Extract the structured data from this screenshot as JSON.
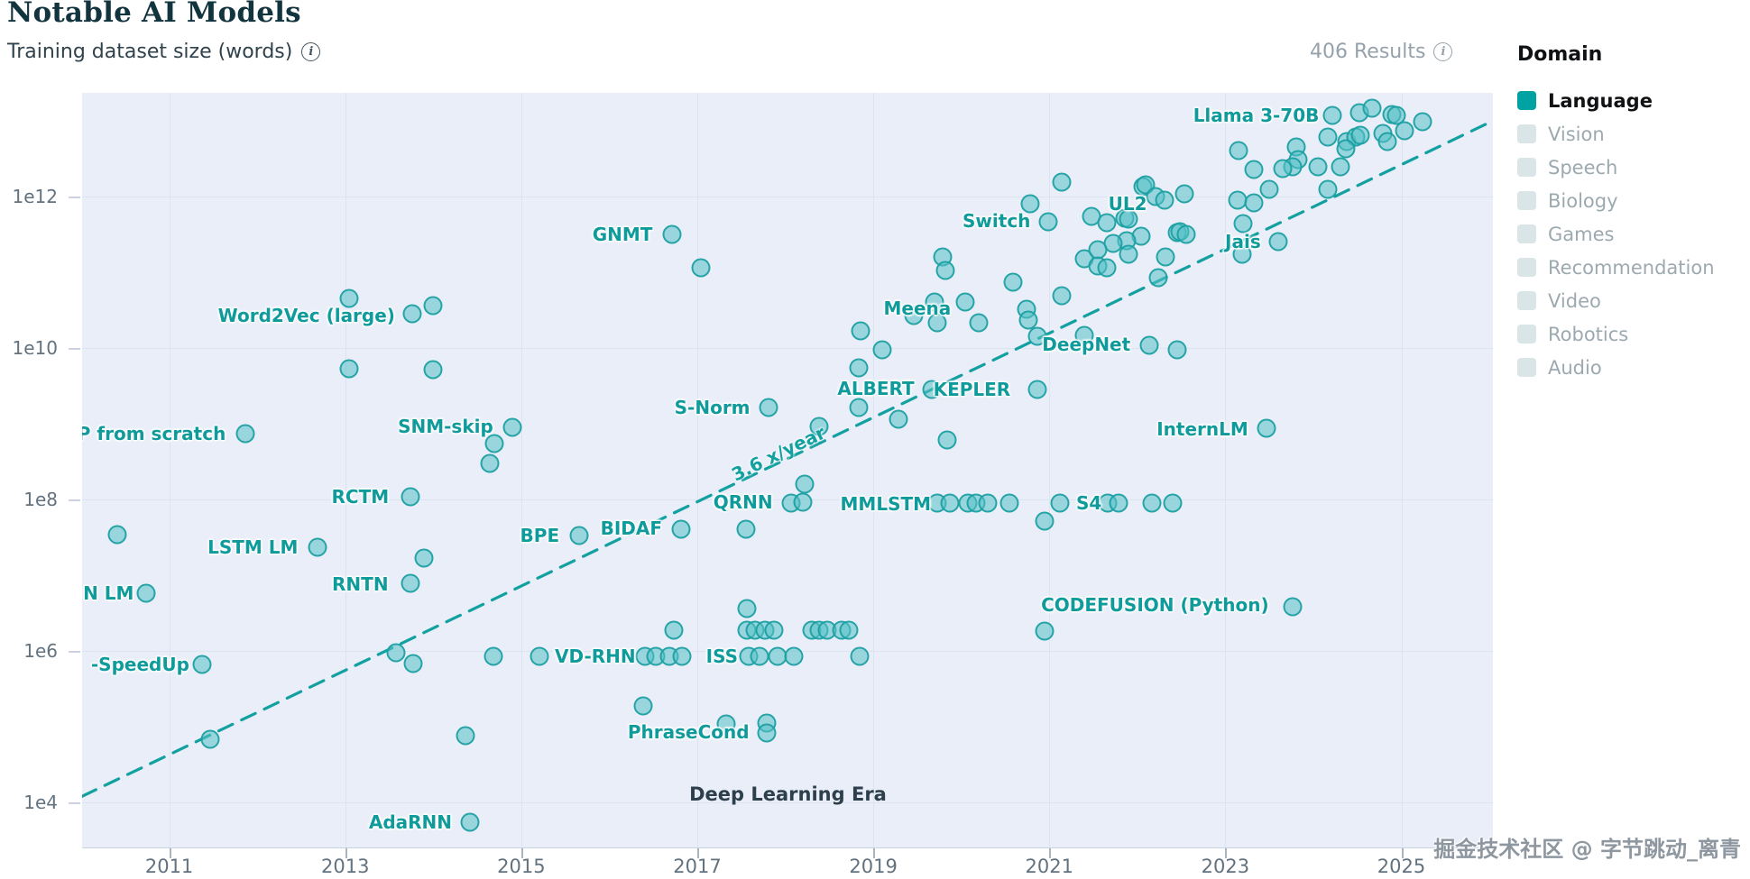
{
  "header": {
    "title": "Notable AI Models",
    "subtitle": "Training dataset size (words)",
    "results": "406 Results"
  },
  "legend": {
    "title": "Domain",
    "items": [
      {
        "label": "Language",
        "active": true
      },
      {
        "label": "Vision",
        "active": false
      },
      {
        "label": "Speech",
        "active": false
      },
      {
        "label": "Biology",
        "active": false
      },
      {
        "label": "Games",
        "active": false
      },
      {
        "label": "Recommendation",
        "active": false
      },
      {
        "label": "Video",
        "active": false
      },
      {
        "label": "Robotics",
        "active": false
      },
      {
        "label": "Audio",
        "active": false
      }
    ]
  },
  "watermark": "掘金技术社区 @ 字节跳动_离青",
  "colors": {
    "title": "#12343f",
    "subtitle": "#30424c",
    "muted": "#95a2ac",
    "accent": "#0f9b9b",
    "trend": "#12a0a0",
    "plot_bg": "#e9eef9",
    "grid": "#dde4f1",
    "axis_text": "#63727f",
    "axis_line": "#c9d2de",
    "tick": "#aab5c2",
    "point_fill": "rgba(85,193,198,0.55)",
    "point_stroke": "rgba(26,158,161,0.9)",
    "legend_active_box": "#00a2a2",
    "legend_active_text": "#101214",
    "legend_inactive_box": "#d9e5e7",
    "legend_inactive_text": "#9caab0",
    "era": "#2e3f4c",
    "watermark": "#8e979f"
  },
  "chart_data": {
    "type": "scatter",
    "title": "Notable AI Models",
    "ylabel": "Training dataset size (words)",
    "x_axis": {
      "domain": [
        2010.01,
        2026.04
      ],
      "ticks": [
        2011,
        2013,
        2015,
        2017,
        2019,
        2021,
        2023,
        2025
      ]
    },
    "y_axis": {
      "scale": "log10",
      "domain_log": [
        3.405,
        13.369
      ],
      "ticks": [
        {
          "label": "1e12",
          "log": 12
        },
        {
          "label": "1e10",
          "log": 10
        },
        {
          "label": "1e8",
          "log": 8
        },
        {
          "label": "1e6",
          "log": 6
        },
        {
          "label": "1e4",
          "log": 4
        }
      ],
      "grid_logs": [
        4,
        6,
        8,
        10,
        12
      ]
    },
    "trendline": {
      "label": "3.6 x/year",
      "x": [
        2010.01,
        2026.04
      ],
      "log10_y": [
        4.08,
        13.0
      ],
      "label_pos": {
        "year": 2017.92,
        "log10": 8.61
      },
      "label_angle_deg": -26
    },
    "era_label": {
      "text": "Deep Learning Era",
      "year": 2018.03,
      "log10": 4.11
    },
    "annotations": [
      {
        "text": "Llama 3-70B",
        "year": 2023.35,
        "log10": 13.07
      },
      {
        "text": "Switch",
        "year": 2020.4,
        "log10": 11.68
      },
      {
        "text": "UL2",
        "year": 2021.89,
        "log10": 11.91
      },
      {
        "text": "Jais",
        "year": 2023.2,
        "log10": 11.4
      },
      {
        "text": "Meena",
        "year": 2019.5,
        "log10": 10.52
      },
      {
        "text": "DeepNet",
        "year": 2021.42,
        "log10": 10.05
      },
      {
        "text": "GNMT",
        "year": 2016.15,
        "log10": 11.5
      },
      {
        "text": "Word2Vec (large)",
        "year": 2012.56,
        "log10": 10.43
      },
      {
        "text": "ALBERT",
        "year": 2019.03,
        "log10": 9.46
      },
      {
        "text": "KEPLER",
        "year": 2020.12,
        "log10": 9.45
      },
      {
        "text": "S-Norm",
        "year": 2017.17,
        "log10": 9.21
      },
      {
        "text": "InternLM",
        "year": 2022.74,
        "log10": 8.93
      },
      {
        "text": "SNM-skip",
        "year": 2014.14,
        "log10": 8.96
      },
      {
        "text": "P from scratch",
        "year": 2010.8,
        "log10": 8.87
      },
      {
        "text": "QRNN",
        "year": 2017.52,
        "log10": 7.96
      },
      {
        "text": "MMLSTM",
        "year": 2019.14,
        "log10": 7.94
      },
      {
        "text": "S4",
        "year": 2021.45,
        "log10": 7.95
      },
      {
        "text": "LSTM LM",
        "year": 2011.95,
        "log10": 7.37
      },
      {
        "text": "BPE",
        "year": 2015.21,
        "log10": 7.52
      },
      {
        "text": "BIDAF",
        "year": 2016.25,
        "log10": 7.62
      },
      {
        "text": "RCTM",
        "year": 2013.17,
        "log10": 8.04
      },
      {
        "text": "N LM",
        "year": 2010.31,
        "log10": 6.76
      },
      {
        "text": "VD-RHN",
        "year": 2015.84,
        "log10": 5.93
      },
      {
        "text": "ISS",
        "year": 2017.28,
        "log10": 5.93
      },
      {
        "text": "-SpeedUp",
        "year": 2010.67,
        "log10": 5.82
      },
      {
        "text": "RNTN",
        "year": 2013.17,
        "log10": 6.88
      },
      {
        "text": "PhraseCond",
        "year": 2016.9,
        "log10": 4.93
      },
      {
        "text": "CODEFUSION (Python)",
        "year": 2022.2,
        "log10": 6.61
      },
      {
        "text": "AdaRNN",
        "year": 2013.74,
        "log10": 3.74
      }
    ],
    "points": [
      [
        2010.41,
        7.54
      ],
      [
        2011.87,
        8.87
      ],
      [
        2010.74,
        6.76
      ],
      [
        2011.37,
        5.82
      ],
      [
        2011.47,
        4.83
      ],
      [
        2013.04,
        10.65
      ],
      [
        2013.76,
        10.45
      ],
      [
        2014.0,
        10.56
      ],
      [
        2013.04,
        9.73
      ],
      [
        2014.0,
        9.71
      ],
      [
        2012.69,
        7.37
      ],
      [
        2013.74,
        8.04
      ],
      [
        2013.74,
        6.89
      ],
      [
        2013.58,
        5.98
      ],
      [
        2013.77,
        5.83
      ],
      [
        2014.37,
        4.88
      ],
      [
        2014.42,
        3.74
      ],
      [
        2013.89,
        7.23
      ],
      [
        2014.9,
        8.95
      ],
      [
        2014.69,
        8.74
      ],
      [
        2014.64,
        8.48
      ],
      [
        2015.66,
        7.52
      ],
      [
        2016.82,
        7.61
      ],
      [
        2016.71,
        11.5
      ],
      [
        2017.04,
        11.06
      ],
      [
        2017.81,
        9.21
      ],
      [
        2014.68,
        5.93
      ],
      [
        2015.21,
        5.93
      ],
      [
        2016.41,
        5.93
      ],
      [
        2016.53,
        5.93
      ],
      [
        2016.68,
        5.93
      ],
      [
        2016.83,
        5.93
      ],
      [
        2016.73,
        6.27
      ],
      [
        2017.58,
        5.93
      ],
      [
        2017.71,
        5.93
      ],
      [
        2017.91,
        5.93
      ],
      [
        2018.1,
        5.93
      ],
      [
        2018.84,
        5.93
      ],
      [
        2017.56,
        6.56
      ],
      [
        2017.56,
        6.27
      ],
      [
        2017.66,
        6.27
      ],
      [
        2017.77,
        6.27
      ],
      [
        2017.87,
        6.27
      ],
      [
        2018.3,
        6.27
      ],
      [
        2018.38,
        6.27
      ],
      [
        2018.48,
        6.27
      ],
      [
        2018.64,
        6.27
      ],
      [
        2018.72,
        6.27
      ],
      [
        2016.38,
        5.27
      ],
      [
        2017.33,
        5.04
      ],
      [
        2017.79,
        5.05
      ],
      [
        2017.79,
        4.92
      ],
      [
        2020.95,
        6.26
      ],
      [
        2023.76,
        6.58
      ],
      [
        2018.83,
        9.74
      ],
      [
        2018.83,
        9.21
      ],
      [
        2019.29,
        9.06
      ],
      [
        2019.66,
        9.45
      ],
      [
        2020.86,
        9.45
      ],
      [
        2019.84,
        8.79
      ],
      [
        2018.38,
        8.96
      ],
      [
        2018.22,
        8.2
      ],
      [
        2018.07,
        7.95
      ],
      [
        2018.2,
        7.96
      ],
      [
        2017.55,
        7.61
      ],
      [
        2019.73,
        7.95
      ],
      [
        2019.87,
        7.95
      ],
      [
        2020.07,
        7.95
      ],
      [
        2020.17,
        7.95
      ],
      [
        2020.3,
        7.95
      ],
      [
        2020.55,
        7.95
      ],
      [
        2021.12,
        7.95
      ],
      [
        2021.66,
        7.95
      ],
      [
        2021.79,
        7.95
      ],
      [
        2022.17,
        7.95
      ],
      [
        2022.4,
        7.95
      ],
      [
        2020.95,
        7.71
      ],
      [
        2023.47,
        8.94
      ],
      [
        2018.86,
        10.23
      ],
      [
        2019.1,
        9.98
      ],
      [
        2019.46,
        10.43
      ],
      [
        2019.7,
        10.61
      ],
      [
        2020.04,
        10.61
      ],
      [
        2019.79,
        11.2
      ],
      [
        2019.82,
        11.02
      ],
      [
        2020.2,
        10.33
      ],
      [
        2019.73,
        10.33
      ],
      [
        2020.59,
        10.87
      ],
      [
        2020.74,
        10.51
      ],
      [
        2020.76,
        10.37
      ],
      [
        2020.86,
        10.15
      ],
      [
        2021.14,
        10.69
      ],
      [
        2021.4,
        10.17
      ],
      [
        2021.4,
        11.18
      ],
      [
        2022.14,
        10.04
      ],
      [
        2022.45,
        9.98
      ],
      [
        2022.24,
        10.93
      ],
      [
        2022.32,
        11.2
      ],
      [
        2021.14,
        12.19
      ],
      [
        2020.78,
        11.9
      ],
      [
        2020.99,
        11.67
      ],
      [
        2021.48,
        11.74
      ],
      [
        2021.65,
        11.65
      ],
      [
        2021.86,
        11.71
      ],
      [
        2021.9,
        11.7
      ],
      [
        2022.06,
        12.13
      ],
      [
        2022.09,
        12.15
      ],
      [
        2022.21,
        12.0
      ],
      [
        2022.31,
        11.95
      ],
      [
        2022.53,
        12.04
      ],
      [
        2022.45,
        11.52
      ],
      [
        2022.48,
        11.54
      ],
      [
        2022.04,
        11.48
      ],
      [
        2021.88,
        11.42
      ],
      [
        2021.73,
        11.38
      ],
      [
        2021.55,
        11.3
      ],
      [
        2021.9,
        11.24
      ],
      [
        2021.55,
        11.08
      ],
      [
        2021.65,
        11.06
      ],
      [
        2024.22,
        13.07
      ],
      [
        2024.52,
        13.11
      ],
      [
        2024.67,
        13.17
      ],
      [
        2024.89,
        13.08
      ],
      [
        2024.94,
        13.07
      ],
      [
        2025.24,
        12.99
      ],
      [
        2024.16,
        12.79
      ],
      [
        2024.38,
        12.73
      ],
      [
        2024.48,
        12.79
      ],
      [
        2024.53,
        12.81
      ],
      [
        2024.79,
        12.83
      ],
      [
        2024.84,
        12.73
      ],
      [
        2025.04,
        12.87
      ],
      [
        2024.37,
        12.63
      ],
      [
        2023.81,
        12.65
      ],
      [
        2023.83,
        12.49
      ],
      [
        2024.05,
        12.39
      ],
      [
        2024.31,
        12.39
      ],
      [
        2023.76,
        12.39
      ],
      [
        2023.65,
        12.37
      ],
      [
        2023.32,
        12.36
      ],
      [
        2023.15,
        12.61
      ],
      [
        2023.5,
        12.1
      ],
      [
        2024.16,
        12.1
      ],
      [
        2023.14,
        11.95
      ],
      [
        2023.32,
        11.92
      ],
      [
        2023.2,
        11.64
      ],
      [
        2022.56,
        11.5
      ],
      [
        2023.6,
        11.4
      ],
      [
        2023.19,
        11.24
      ]
    ]
  }
}
